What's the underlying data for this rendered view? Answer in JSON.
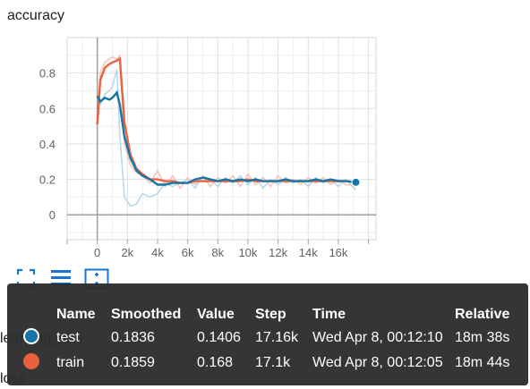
{
  "card": {
    "title": "accuracy"
  },
  "chart_data": {
    "type": "line",
    "xlabel": "",
    "ylabel": "",
    "xlim": [
      -2000,
      18500
    ],
    "ylim": [
      -0.14,
      1.0
    ],
    "x_ticks": [
      0,
      2000,
      4000,
      6000,
      8000,
      10000,
      12000,
      14000,
      16000
    ],
    "x_tick_labels": [
      "0",
      "2k",
      "4k",
      "6k",
      "8k",
      "10k",
      "12k",
      "14k",
      "16k"
    ],
    "y_ticks": [
      0,
      0.2,
      0.4,
      0.6,
      0.8
    ],
    "y_tick_labels": [
      "0",
      "0.2",
      "0.4",
      "0.6",
      "0.8"
    ],
    "grid": true,
    "series": [
      {
        "name": "test",
        "color": "#1576a6",
        "raw_color": "#b3d6ec",
        "x": [
          0,
          200,
          500,
          800,
          1000,
          1300,
          1500,
          1800,
          2200,
          2600,
          3000,
          3500,
          4000,
          4500,
          5000,
          5500,
          6000,
          6500,
          7000,
          7500,
          8000,
          8500,
          9000,
          9500,
          10000,
          10500,
          11000,
          11500,
          12000,
          12500,
          13000,
          13500,
          14000,
          14500,
          15000,
          15500,
          16000,
          16500,
          17160
        ],
        "smoothed": [
          0.67,
          0.64,
          0.66,
          0.65,
          0.66,
          0.69,
          0.62,
          0.44,
          0.32,
          0.25,
          0.22,
          0.2,
          0.17,
          0.17,
          0.18,
          0.18,
          0.18,
          0.2,
          0.21,
          0.2,
          0.19,
          0.2,
          0.19,
          0.2,
          0.19,
          0.2,
          0.19,
          0.19,
          0.19,
          0.2,
          0.19,
          0.19,
          0.19,
          0.2,
          0.19,
          0.2,
          0.19,
          0.19,
          0.1836
        ],
        "raw": [
          0.67,
          0.62,
          0.68,
          0.7,
          0.72,
          0.82,
          0.45,
          0.1,
          0.05,
          0.06,
          0.12,
          0.1,
          0.12,
          0.18,
          0.16,
          0.18,
          0.2,
          0.15,
          0.22,
          0.2,
          0.16,
          0.21,
          0.18,
          0.22,
          0.17,
          0.21,
          0.15,
          0.2,
          0.17,
          0.21,
          0.18,
          0.2,
          0.16,
          0.21,
          0.18,
          0.2,
          0.16,
          0.2,
          0.1406
        ]
      },
      {
        "name": "train",
        "color": "#e8613f",
        "raw_color": "#f6c3b3",
        "x": [
          0,
          200,
          500,
          800,
          1000,
          1300,
          1500,
          1800,
          2200,
          2600,
          3000,
          3500,
          4000,
          4500,
          5000,
          5500,
          6000,
          6500,
          7000,
          7500,
          8000,
          8500,
          9000,
          9500,
          10000,
          10500,
          11000,
          11500,
          12000,
          12500,
          13000,
          13500,
          14000,
          14500,
          15000,
          15500,
          16000,
          16500,
          17100
        ],
        "smoothed": [
          0.51,
          0.76,
          0.83,
          0.85,
          0.86,
          0.87,
          0.88,
          0.52,
          0.34,
          0.26,
          0.23,
          0.2,
          0.2,
          0.19,
          0.19,
          0.18,
          0.18,
          0.19,
          0.19,
          0.19,
          0.19,
          0.19,
          0.19,
          0.19,
          0.2,
          0.19,
          0.19,
          0.19,
          0.19,
          0.19,
          0.19,
          0.19,
          0.19,
          0.19,
          0.19,
          0.19,
          0.19,
          0.19,
          0.1859
        ],
        "raw": [
          0.51,
          0.8,
          0.86,
          0.88,
          0.89,
          0.88,
          0.9,
          0.4,
          0.28,
          0.24,
          0.22,
          0.18,
          0.25,
          0.16,
          0.22,
          0.15,
          0.21,
          0.17,
          0.22,
          0.16,
          0.21,
          0.18,
          0.22,
          0.16,
          0.23,
          0.17,
          0.21,
          0.16,
          0.22,
          0.18,
          0.2,
          0.17,
          0.21,
          0.18,
          0.21,
          0.17,
          0.2,
          0.17,
          0.168
        ]
      }
    ]
  },
  "toolbar": {
    "fit_icon": "fullscreen-icon",
    "log_icon": "lines-icon",
    "reset_icon": "fit-domain-icon"
  },
  "sub_labels": {
    "learning_rate": "learning_rate",
    "loss": "loss"
  },
  "tooltip": {
    "headers": {
      "name": "Name",
      "smoothed": "Smoothed",
      "value": "Value",
      "step": "Step",
      "time": "Time",
      "relative": "Relative"
    },
    "rows": [
      {
        "name": "test",
        "smoothed": "0.1836",
        "value": "0.1406",
        "step": "17.16k",
        "time": "Wed Apr 8, 00:12:10",
        "relative": "18m 38s",
        "color": "#1576a6"
      },
      {
        "name": "train",
        "smoothed": "0.1859",
        "value": "0.168",
        "step": "17.1k",
        "time": "Wed Apr 8, 00:12:05",
        "relative": "18m 44s",
        "color": "#e8613f"
      }
    ]
  }
}
